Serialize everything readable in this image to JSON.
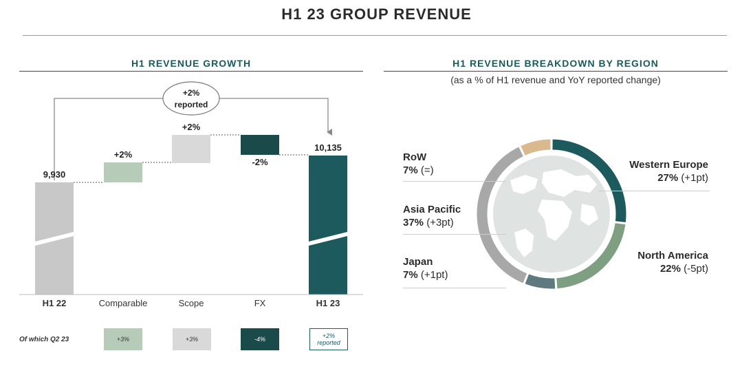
{
  "page": {
    "title": "H1 23 GROUP REVENUE"
  },
  "left_panel": {
    "title": "H1 REVENUE GROWTH",
    "bubble_line1": "+2%",
    "bubble_line2": "reported",
    "q2_label": "Of which Q2 23",
    "q2_values": [
      {
        "text": "+3%",
        "color": "#b7ccb8"
      },
      {
        "text": "+3%",
        "color": "#d9d9d9"
      },
      {
        "text": "-4%",
        "color": "#1a4a4a"
      },
      {
        "text": "+2% reported",
        "color": "#ffffff"
      }
    ]
  },
  "right_panel": {
    "title": "H1 REVENUE BREAKDOWN BY REGION",
    "subtitle": "(as a % of H1 revenue and YoY reported change)",
    "regions": [
      {
        "name": "Western Europe",
        "pct": "27%",
        "change": "(+1pt)"
      },
      {
        "name": "North America",
        "pct": "22%",
        "change": "(-5pt)"
      },
      {
        "name": "RoW",
        "pct": "7%",
        "change": "(=)"
      },
      {
        "name": "Asia Pacific",
        "pct": "37%",
        "change": "(+3pt)"
      },
      {
        "name": "Japan",
        "pct": "7%",
        "change": "(+1pt)"
      }
    ]
  },
  "chart_data": [
    {
      "type": "bar",
      "subtype": "waterfall",
      "title": "H1 REVENUE GROWTH",
      "categories": [
        "H1 22",
        "Comparable",
        "Scope",
        "FX",
        "H1 23"
      ],
      "values": [
        9930,
        2,
        2,
        -2,
        10135
      ],
      "data_labels": [
        "9,930",
        "+2%",
        "+2%",
        "-2%",
        "10,135"
      ],
      "axis_break": true,
      "colors": [
        "#c8c8c8",
        "#b7ccb8",
        "#d9d9d9",
        "#1a4a4a",
        "#1c5a5e"
      ],
      "annotation": "+2% reported"
    },
    {
      "type": "pie",
      "subtype": "donut",
      "title": "H1 REVENUE BREAKDOWN BY REGION",
      "subtitle": "(as a % of H1 revenue and YoY reported change)",
      "categories": [
        "Western Europe",
        "North America",
        "Japan",
        "Asia Pacific",
        "RoW"
      ],
      "values": [
        27,
        22,
        7,
        37,
        7
      ],
      "colors": [
        "#1c5a5e",
        "#7f9f82",
        "#5e7a80",
        "#a8a8a8",
        "#d9b98d"
      ]
    }
  ]
}
